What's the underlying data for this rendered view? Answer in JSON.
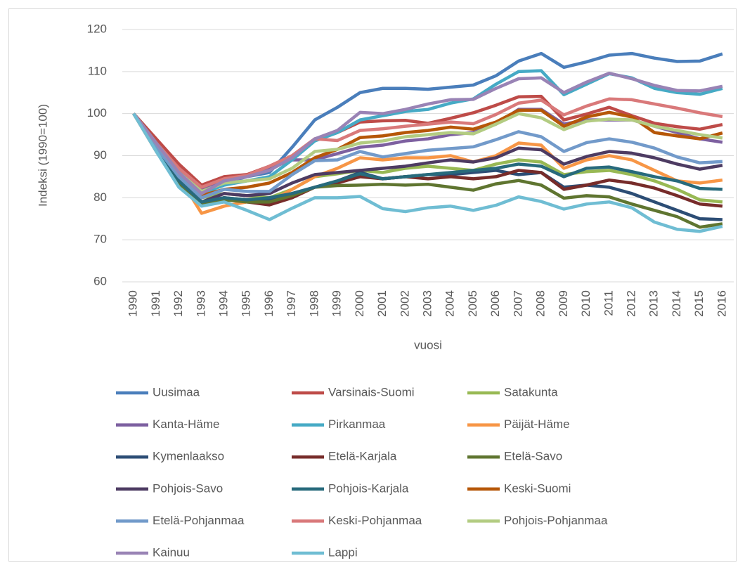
{
  "chart_data": {
    "type": "line",
    "y_label": "Indeksi (1990=100)",
    "x_label": "vuosi",
    "categories": [
      "1990",
      "1991",
      "1992",
      "1993",
      "1994",
      "1995",
      "1996",
      "1997",
      "1998",
      "1999",
      "2000",
      "2001",
      "2002",
      "2003",
      "2004",
      "2005",
      "2006",
      "2007",
      "2008",
      "2009",
      "2010",
      "2011",
      "2012",
      "2013",
      "2014",
      "2015",
      "2016"
    ],
    "ylim": [
      60,
      120
    ],
    "yticks": [
      60,
      70,
      80,
      90,
      100,
      110,
      120
    ],
    "grid": true,
    "legend": "bottom",
    "series": [
      {
        "name": "Uusimaa",
        "color": "#4a7ebb",
        "values": [
          100,
          93,
          87,
          82,
          83.5,
          85,
          86,
          92,
          98.5,
          101.5,
          105,
          106,
          106,
          105.8,
          106.3,
          106.8,
          109,
          112.5,
          114.3,
          111,
          112.3,
          113.9,
          114.3,
          113.2,
          112.4,
          112.5,
          114.2
        ]
      },
      {
        "name": "Varsinais-Suomi",
        "color": "#be4b48",
        "values": [
          100,
          94,
          88,
          83,
          85,
          85.5,
          87.5,
          90,
          94,
          95.5,
          98,
          98.3,
          98.4,
          97.7,
          98.9,
          100.2,
          102,
          104,
          104.1,
          98.5,
          99.9,
          101.5,
          99.5,
          97.7,
          96.9,
          96.3,
          97.4
        ]
      },
      {
        "name": "Satakunta",
        "color": "#98b954",
        "values": [
          100,
          92,
          86,
          80,
          81,
          80.5,
          80,
          82,
          85,
          85.7,
          86.5,
          86,
          87,
          87.5,
          87,
          86.5,
          88,
          89,
          88.5,
          85.5,
          86.2,
          86.5,
          85.5,
          84,
          82,
          79.5,
          79
        ]
      },
      {
        "name": "Kanta-Häme",
        "color": "#7d60a0",
        "values": [
          100,
          93,
          87,
          82,
          84,
          85,
          87,
          89,
          89,
          90.5,
          92,
          92.5,
          93.5,
          94,
          95,
          95.5,
          97.5,
          101,
          101,
          97.5,
          98.5,
          98.5,
          98.5,
          97,
          95.5,
          94,
          93.2
        ]
      },
      {
        "name": "Pirkanmaa",
        "color": "#46aac5",
        "values": [
          100,
          93,
          86,
          81,
          83,
          84,
          85,
          89,
          93.5,
          95.5,
          98.5,
          99.5,
          100.5,
          101,
          102.5,
          103.5,
          107,
          110,
          110.2,
          104.5,
          107,
          109.5,
          108.5,
          106,
          105,
          104.6,
          106
        ]
      },
      {
        "name": "Päijät-Häme",
        "color": "#f79646",
        "values": [
          100,
          91,
          85,
          76.3,
          78,
          79,
          79,
          82,
          85,
          87,
          89.5,
          89,
          89.5,
          89.5,
          90,
          88.5,
          90,
          93,
          92.5,
          87,
          89,
          90,
          89,
          86.5,
          84,
          83.5,
          84.2
        ]
      },
      {
        "name": "Kymenlaakso",
        "color": "#2c4d75",
        "values": [
          100,
          92,
          84,
          78.5,
          80,
          79.5,
          79.5,
          81,
          82.5,
          84,
          86,
          84.5,
          85,
          85.5,
          85.5,
          86,
          86.5,
          85.5,
          86,
          82.5,
          83,
          82.5,
          81,
          79,
          77,
          75,
          74.8
        ]
      },
      {
        "name": "Etelä-Karjala",
        "color": "#772c2a",
        "values": [
          100,
          93,
          85,
          79,
          80,
          79,
          78.3,
          80,
          82.5,
          83.5,
          85,
          84.5,
          85,
          84.5,
          85,
          84.5,
          85,
          86.5,
          86,
          82,
          83,
          84.2,
          83.5,
          82.3,
          80.5,
          78.5,
          78
        ]
      },
      {
        "name": "Etelä-Savo",
        "color": "#5f7530",
        "values": [
          100,
          92,
          83,
          78.5,
          79.5,
          79,
          79,
          80.5,
          82.5,
          82.9,
          83,
          83.2,
          83,
          83.2,
          82.5,
          81.8,
          83.3,
          84.1,
          83,
          79.9,
          80.5,
          80.2,
          78.5,
          77,
          75.5,
          73,
          73.8
        ]
      },
      {
        "name": "Pohjois-Savo",
        "color": "#4d3b62",
        "values": [
          100,
          92,
          85,
          79,
          81,
          80.5,
          81,
          83.5,
          85.5,
          86,
          86.5,
          87,
          87.5,
          88.3,
          89,
          88.5,
          89.5,
          91.8,
          91.4,
          88,
          89.8,
          91,
          90.6,
          89.5,
          88,
          86.8,
          87.7
        ]
      },
      {
        "name": "Pohjois-Karjala",
        "color": "#276a7c",
        "values": [
          100,
          92,
          84,
          79,
          80,
          79.5,
          80,
          81,
          82.5,
          84,
          85.7,
          84.5,
          85,
          85.5,
          86,
          86.5,
          87,
          88,
          87.5,
          85,
          87,
          87.3,
          86.2,
          85,
          84,
          82.2,
          82
        ]
      },
      {
        "name": "Keski-Suomi",
        "color": "#b65708",
        "values": [
          100,
          93,
          86,
          80.5,
          82,
          82.5,
          83.5,
          86,
          89.5,
          91.5,
          94.3,
          94.7,
          95.5,
          96,
          96.8,
          96.3,
          98,
          100.8,
          100.8,
          97,
          99.2,
          100.3,
          99.2,
          95.5,
          94.7,
          94,
          95.4
        ]
      },
      {
        "name": "Etelä-Pohjanmaa",
        "color": "#729aca",
        "values": [
          100,
          92,
          85,
          80,
          82,
          81.5,
          81.5,
          85.5,
          88.8,
          89,
          91,
          89.7,
          90.5,
          91.3,
          91.7,
          92.1,
          93.8,
          95.7,
          94.5,
          91,
          93.1,
          94,
          93.2,
          91.8,
          89.7,
          88.3,
          88.6
        ]
      },
      {
        "name": "Keski-Pohjanmaa",
        "color": "#d9797a",
        "values": [
          100,
          93,
          87,
          82.5,
          84.5,
          85.3,
          87.5,
          90,
          94,
          93.6,
          96,
          96.4,
          97,
          97.5,
          98,
          97.6,
          99.8,
          102.5,
          103.2,
          99.7,
          101.8,
          103.5,
          103.3,
          102.3,
          101.3,
          100.2,
          99.3
        ]
      },
      {
        "name": "Pohjois-Pohjanmaa",
        "color": "#b3cc82",
        "values": [
          100,
          93,
          86,
          81.5,
          83.5,
          84,
          84.5,
          87,
          91,
          91.5,
          93,
          93.5,
          94.5,
          95,
          95.5,
          95.2,
          97.5,
          100,
          99,
          96.2,
          98.2,
          98.7,
          98.5,
          97,
          96,
          95,
          94.2
        ]
      },
      {
        "name": "Kainuu",
        "color": "#9983b5",
        "values": [
          100,
          93,
          86,
          81,
          84,
          85,
          86.5,
          89.5,
          94,
          96,
          100.3,
          100,
          101,
          102.3,
          103.3,
          103.4,
          106,
          108.3,
          108.5,
          105,
          107.5,
          109.6,
          108.3,
          106.7,
          105.5,
          105.4,
          106.5
        ]
      },
      {
        "name": "Lappi",
        "color": "#6fbdd3",
        "values": [
          100,
          91,
          82.5,
          78,
          79,
          77,
          74.8,
          77.5,
          80,
          80,
          80.3,
          77.4,
          76.7,
          77.6,
          78,
          77,
          78.2,
          80.2,
          79.1,
          77.3,
          78.5,
          79,
          77.6,
          74.2,
          72.5,
          72,
          73.2
        ]
      }
    ]
  }
}
